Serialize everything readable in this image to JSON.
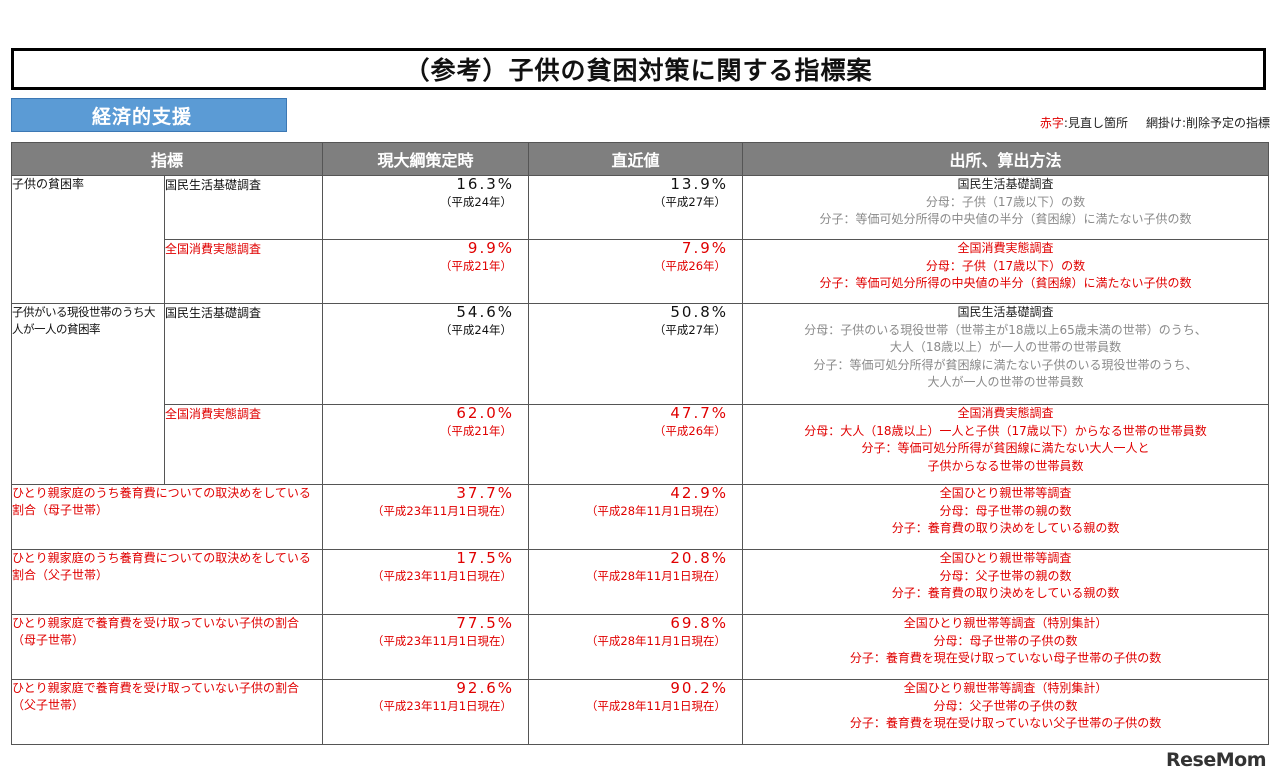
{
  "title": "（参考）子供の貧困対策に関する指標案",
  "section": "経済的支援",
  "legend": {
    "red_label": "赤字",
    "red_text": ":見直し箇所",
    "hatch_text": "網掛け:削除予定の指標"
  },
  "headers": [
    "指標",
    "現大綱策定時",
    "直近値",
    "出所、算出方法"
  ],
  "rows": [
    {
      "category": "子供の貧困率",
      "survey": "国民生活基礎調査",
      "current": "16.3%",
      "current_year": "（平成24年）",
      "latest": "13.9%",
      "latest_year": "（平成27年）",
      "src_head": "国民生活基礎調査",
      "src_lines": [
        "分母：子供（17歳以下）の数",
        "分子：等価可処分所得の中央値の半分（貧困線）に満たない子供の数"
      ]
    },
    {
      "survey": "全国消費実態調査",
      "current": "9.9%",
      "current_year": "（平成21年）",
      "latest": "7.9%",
      "latest_year": "（平成26年）",
      "src_head": "全国消費実態調査",
      "src_lines": [
        "分母：子供（17歳以下）の数",
        "分子：等価可処分所得の中央値の半分（貧困線）に満たない子供の数"
      ]
    },
    {
      "category": "子供がいる現役世帯のうち大人が一人の貧困率",
      "survey": "国民生活基礎調査",
      "current": "54.6%",
      "current_year": "（平成24年）",
      "latest": "50.8%",
      "latest_year": "（平成27年）",
      "src_head": "国民生活基礎調査",
      "src_lines": [
        "分母：子供のいる現役世帯（世帯主が18歳以上65歳未満の世帯）のうち、",
        "大人（18歳以上）が一人の世帯の世帯員数",
        "分子：等価可処分所得が貧困線に満たない子供のいる現役世帯のうち、",
        "大人が一人の世帯の世帯員数"
      ]
    },
    {
      "survey": "全国消費実態調査",
      "current": "62.0%",
      "current_year": "（平成21年）",
      "latest": "47.7%",
      "latest_year": "（平成26年）",
      "src_head": "全国消費実態調査",
      "src_lines": [
        "分母：大人（18歳以上）一人と子供（17歳以下）からなる世帯の世帯員数",
        "分子：等価可処分所得が貧困線に満たない大人一人と",
        "子供からなる世帯の世帯員数"
      ]
    },
    {
      "category": "ひとり親家庭のうち養育費についての取決めをしている割合（母子世帯）",
      "current": "37.7%",
      "current_year": "（平成23年11月1日現在）",
      "latest": "42.9%",
      "latest_year": "（平成28年11月1日現在）",
      "src_head": "全国ひとり親世帯等調査",
      "src_lines": [
        "分母：母子世帯の親の数",
        "分子：養育費の取り決めをしている親の数"
      ]
    },
    {
      "category": "ひとり親家庭のうち養育費についての取決めをしている割合（父子世帯）",
      "current": "17.5%",
      "current_year": "（平成23年11月1日現在）",
      "latest": "20.8%",
      "latest_year": "（平成28年11月1日現在）",
      "src_head": "全国ひとり親世帯等調査",
      "src_lines": [
        "分母：父子世帯の親の数",
        "分子：養育費の取り決めをしている親の数"
      ]
    },
    {
      "category": "ひとり親家庭で養育費を受け取っていない子供の割合（母子世帯）",
      "current": "77.5%",
      "current_year": "（平成23年11月1日現在）",
      "latest": "69.8%",
      "latest_year": "（平成28年11月1日現在）",
      "src_head": "全国ひとり親世帯等調査（特別集計）",
      "src_lines": [
        "分母：母子世帯の子供の数",
        "分子：養育費を現在受け取っていない母子世帯の子供の数"
      ]
    },
    {
      "category": "ひとり親家庭で養育費を受け取っていない子供の割合（父子世帯）",
      "current": "92.6%",
      "current_year": "（平成23年11月1日現在）",
      "latest": "90.2%",
      "latest_year": "（平成28年11月1日現在）",
      "src_head": "全国ひとり親世帯等調査（特別集計）",
      "src_lines": [
        "分母：父子世帯の子供の数",
        "分子：養育費を現在受け取っていない父子世帯の子供の数"
      ]
    }
  ],
  "watermark": "ReseMom"
}
